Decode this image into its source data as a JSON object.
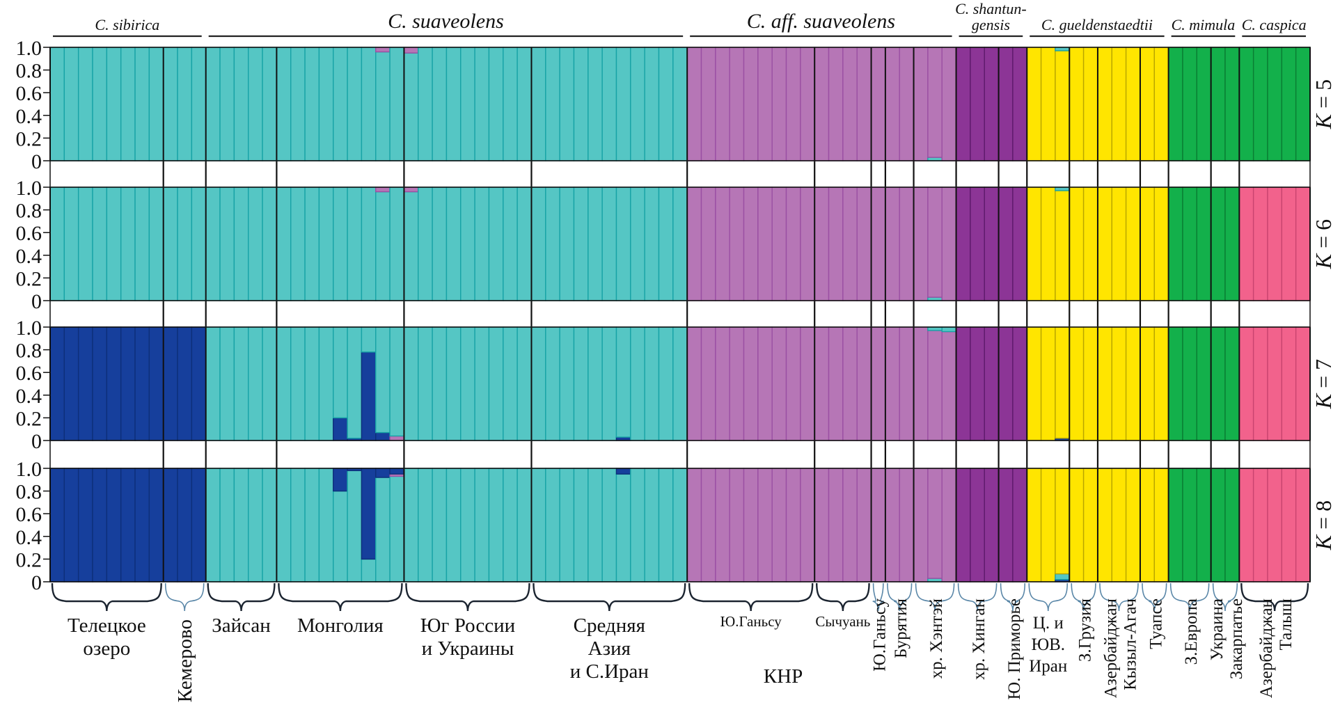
{
  "chart_data": {
    "type": "bar",
    "subtype": "stacked-membership-structure-plot",
    "ylim": [
      0,
      1
    ],
    "y_ticks": [
      "1.0",
      "0.8",
      "0.6",
      "0.4",
      "0.2",
      "0"
    ],
    "cluster_colors": {
      "teal": "#55c6c4",
      "darkblue": "#163f9c",
      "lightpurple": "#b676b6",
      "darkpurple": "#8c3596",
      "yellow": "#ffe500",
      "green": "#13b04b",
      "pink": "#f2628c"
    },
    "species": [
      {
        "label": "C. sibirica",
        "pops": [
          0,
          1
        ]
      },
      {
        "label": "C. suaveolens",
        "pops": [
          2,
          3,
          4,
          5
        ]
      },
      {
        "label": "C. aff. suaveolens",
        "pops": [
          6,
          7,
          8,
          9,
          10
        ]
      },
      {
        "label": "C. shantun-",
        "label2": "gensis",
        "pops": [
          11,
          12
        ]
      },
      {
        "label": "C. gueldenstaedtii",
        "pops": [
          13,
          14,
          15,
          16
        ]
      },
      {
        "label": "C. mimula",
        "pops": [
          17,
          18
        ]
      },
      {
        "label": "C. caspica",
        "pops": [
          19
        ]
      }
    ],
    "populations": [
      {
        "lines": [
          "Телецкое",
          "озеро"
        ],
        "n": 8,
        "group": "sibirica"
      },
      {
        "lines": [
          "Кемерово"
        ],
        "n": 3,
        "group": "sibirica"
      },
      {
        "lines": [
          "Зайсан"
        ],
        "n": 5,
        "group": "suaveolens"
      },
      {
        "lines": [
          "Монголия"
        ],
        "n": 9,
        "group": "suaveolens"
      },
      {
        "lines": [
          "Юг России",
          "и Украины"
        ],
        "n": 9,
        "group": "suaveolens"
      },
      {
        "lines": [
          "Средняя",
          "Азия",
          "и С.Иран"
        ],
        "n": 11,
        "group": "suaveolens"
      },
      {
        "lines": [
          "Ю.Ганьсу"
        ],
        "n": 9,
        "group": "aff"
      },
      {
        "lines": [
          "Сычуань"
        ],
        "n": 4,
        "group": "aff"
      },
      {
        "lines": [
          "Ю.Ганьсу"
        ],
        "n": 1,
        "group": "aff"
      },
      {
        "lines": [
          "Бурятия"
        ],
        "n": 2,
        "group": "aff"
      },
      {
        "lines": [
          "хр. Хэнтэй"
        ],
        "n": 3,
        "group": "aff"
      },
      {
        "lines": [
          "хр. Хинган"
        ],
        "n": 3,
        "group": "shantungensis"
      },
      {
        "lines": [
          "Ю. Приморье"
        ],
        "n": 2,
        "group": "shantungensis"
      },
      {
        "lines": [
          "Ц. и",
          "ЮВ.",
          "Иран"
        ],
        "n": 3,
        "group": "gueldenstaedtii"
      },
      {
        "lines": [
          "З.Грузия"
        ],
        "n": 2,
        "group": "gueldenstaedtii"
      },
      {
        "lines": [
          "Азербайджан",
          "Кызыл-Агач"
        ],
        "n": 3,
        "group": "gueldenstaedtii"
      },
      {
        "lines": [
          "Туапсе"
        ],
        "n": 2,
        "group": "gueldenstaedtii"
      },
      {
        "lines": [
          "З.Европа"
        ],
        "n": 3,
        "group": "mimula"
      },
      {
        "lines": [
          "Украина",
          "Закарпатье"
        ],
        "n": 2,
        "group": "mimula"
      },
      {
        "lines": [
          "Азербайджан",
          "Талыш"
        ],
        "n": 5,
        "group": "caspica"
      }
    ],
    "region_label": "КНР",
    "panels": [
      {
        "label": "K = 5",
        "k": "K",
        "eq": " = 5",
        "default_cluster": {
          "sibirica": "teal",
          "suaveolens": "teal",
          "aff": "lightpurple",
          "shantungensis": "darkpurple",
          "gueldenstaedtii": "yellow",
          "mimula": "green",
          "caspica": "green"
        },
        "exceptions": [
          {
            "pop": 3,
            "ind": 7,
            "q": [
              [
                "teal",
                0.96
              ],
              [
                "lightpurple",
                0.04
              ]
            ]
          },
          {
            "pop": 4,
            "ind": 0,
            "q": [
              [
                "teal",
                0.95
              ],
              [
                "lightpurple",
                0.05
              ]
            ]
          },
          {
            "pop": 10,
            "ind": 1,
            "q": [
              [
                "teal",
                0.03
              ],
              [
                "lightpurple",
                0.97
              ]
            ]
          },
          {
            "pop": 13,
            "ind": 2,
            "q": [
              [
                "yellow",
                0.97
              ],
              [
                "teal",
                0.03
              ]
            ]
          }
        ]
      },
      {
        "label": "K = 6",
        "k": "K",
        "eq": " = 6",
        "default_cluster": {
          "sibirica": "teal",
          "suaveolens": "teal",
          "aff": "lightpurple",
          "shantungensis": "darkpurple",
          "gueldenstaedtii": "yellow",
          "mimula": "green",
          "caspica": "pink"
        },
        "exceptions": [
          {
            "pop": 3,
            "ind": 7,
            "q": [
              [
                "teal",
                0.96
              ],
              [
                "lightpurple",
                0.04
              ]
            ]
          },
          {
            "pop": 4,
            "ind": 0,
            "q": [
              [
                "teal",
                0.96
              ],
              [
                "lightpurple",
                0.04
              ]
            ]
          },
          {
            "pop": 10,
            "ind": 1,
            "q": [
              [
                "teal",
                0.03
              ],
              [
                "lightpurple",
                0.97
              ]
            ]
          },
          {
            "pop": 13,
            "ind": 2,
            "q": [
              [
                "yellow",
                0.97
              ],
              [
                "teal",
                0.03
              ]
            ]
          }
        ]
      },
      {
        "label": "K = 7",
        "k": "K",
        "eq": " = 7",
        "default_cluster": {
          "sibirica": "darkblue",
          "suaveolens": "teal",
          "aff": "lightpurple",
          "shantungensis": "darkpurple",
          "gueldenstaedtii": "yellow",
          "mimula": "green",
          "caspica": "pink"
        },
        "exceptions": [
          {
            "pop": 3,
            "ind": 4,
            "q": [
              [
                "darkblue",
                0.2
              ],
              [
                "teal",
                0.8
              ]
            ]
          },
          {
            "pop": 3,
            "ind": 5,
            "q": [
              [
                "darkblue",
                0.02
              ],
              [
                "teal",
                0.98
              ]
            ]
          },
          {
            "pop": 3,
            "ind": 6,
            "q": [
              [
                "darkblue",
                0.78
              ],
              [
                "teal",
                0.22
              ]
            ]
          },
          {
            "pop": 3,
            "ind": 7,
            "q": [
              [
                "darkblue",
                0.07
              ],
              [
                "teal",
                0.93
              ]
            ]
          },
          {
            "pop": 3,
            "ind": 8,
            "q": [
              [
                "lightpurple",
                0.04
              ],
              [
                "teal",
                0.96
              ]
            ]
          },
          {
            "pop": 5,
            "ind": 6,
            "q": [
              [
                "darkblue",
                0.03
              ],
              [
                "teal",
                0.97
              ]
            ]
          },
          {
            "pop": 10,
            "ind": 1,
            "q": [
              [
                "lightpurple",
                0.97
              ],
              [
                "teal",
                0.03
              ]
            ]
          },
          {
            "pop": 10,
            "ind": 2,
            "q": [
              [
                "lightpurple",
                0.96
              ],
              [
                "teal",
                0.04
              ]
            ]
          },
          {
            "pop": 13,
            "ind": 2,
            "q": [
              [
                "darkblue",
                0.02
              ],
              [
                "yellow",
                0.98
              ]
            ]
          }
        ]
      },
      {
        "label": "K = 8",
        "k": "K",
        "eq": " = 8",
        "default_cluster": {
          "sibirica": "darkblue",
          "suaveolens": "teal",
          "aff": "lightpurple",
          "shantungensis": "darkpurple",
          "gueldenstaedtii": "yellow",
          "mimula": "green",
          "caspica": "pink"
        },
        "exceptions": [
          {
            "pop": 3,
            "ind": 4,
            "q": [
              [
                "teal",
                0.8
              ],
              [
                "darkblue",
                0.2
              ]
            ]
          },
          {
            "pop": 3,
            "ind": 5,
            "q": [
              [
                "teal",
                0.98
              ],
              [
                "darkblue",
                0.02
              ]
            ]
          },
          {
            "pop": 3,
            "ind": 6,
            "q": [
              [
                "teal",
                0.2
              ],
              [
                "darkblue",
                0.8
              ]
            ]
          },
          {
            "pop": 3,
            "ind": 7,
            "q": [
              [
                "teal",
                0.92
              ],
              [
                "darkblue",
                0.08
              ]
            ]
          },
          {
            "pop": 3,
            "ind": 8,
            "q": [
              [
                "teal",
                0.93
              ],
              [
                "lightpurple",
                0.02
              ],
              [
                "darkblue",
                0.05
              ]
            ]
          },
          {
            "pop": 5,
            "ind": 6,
            "q": [
              [
                "teal",
                0.95
              ],
              [
                "darkblue",
                0.05
              ]
            ]
          },
          {
            "pop": 10,
            "ind": 1,
            "q": [
              [
                "teal",
                0.03
              ],
              [
                "lightpurple",
                0.97
              ]
            ]
          },
          {
            "pop": 13,
            "ind": 2,
            "q": [
              [
                "darkblue",
                0.02
              ],
              [
                "teal",
                0.05
              ],
              [
                "yellow",
                0.93
              ]
            ]
          }
        ]
      }
    ]
  }
}
